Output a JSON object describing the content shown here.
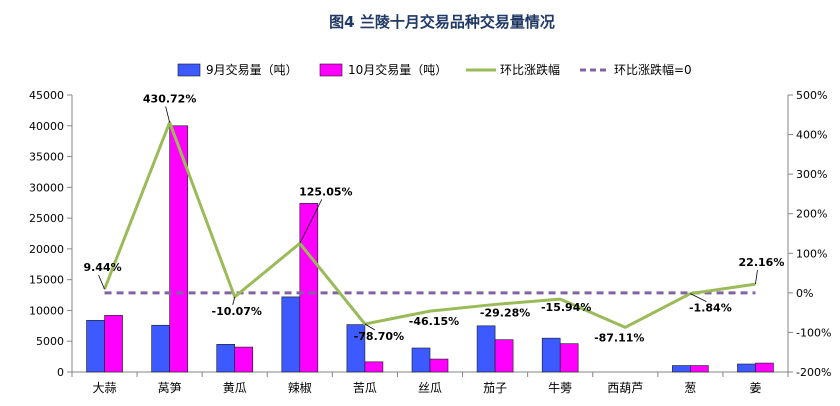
{
  "chart_data": {
    "type": "bar",
    "title": "图4  兰陵十月交易品种交易量情况",
    "categories": [
      "大蒜",
      "莴笋",
      "黄瓜",
      "辣椒",
      "苦瓜",
      "丝瓜",
      "茄子",
      "牛蒡",
      "西葫芦",
      "葱",
      "姜"
    ],
    "series": [
      {
        "name": "9月交易量（吨）",
        "axis": "left",
        "color": "#3c5aff",
        "values": [
          8400,
          7600,
          4500,
          12200,
          7700,
          3900,
          7500,
          5500,
          0,
          1050,
          1300
        ]
      },
      {
        "name": "10月交易量（吨）",
        "axis": "left",
        "color": "#ff00ff",
        "values": [
          9200,
          40000,
          4050,
          27400,
          1650,
          2100,
          5250,
          4600,
          0,
          1050,
          1450
        ]
      },
      {
        "name": "环比涨跌幅",
        "axis": "right",
        "type": "line",
        "color": "#9bbb59",
        "values": [
          9.44,
          430.72,
          -10.07,
          125.05,
          -78.7,
          -46.15,
          -29.28,
          -15.94,
          -87.11,
          -1.84,
          22.16
        ]
      },
      {
        "name": "环比涨跌幅=0",
        "axis": "right",
        "type": "line",
        "style": "dashed",
        "color": "#8064a2",
        "values": [
          0,
          0,
          0,
          0,
          0,
          0,
          0,
          0,
          0,
          0,
          0
        ]
      }
    ],
    "data_labels": [
      "9.44%",
      "430.72%",
      "-10.07%",
      "125.05%",
      "-78.70%",
      "-46.15%",
      "-29.28%",
      "-15.94%",
      "-87.11%",
      "-1.84%",
      "22.16%"
    ],
    "left_axis": {
      "min": 0,
      "max": 45000,
      "step": 5000,
      "ticks": [
        "0",
        "5000",
        "10000",
        "15000",
        "20000",
        "25000",
        "30000",
        "35000",
        "40000",
        "45000"
      ]
    },
    "right_axis": {
      "min": -200,
      "max": 500,
      "step": 100,
      "ticks": [
        "-200%",
        "-100%",
        "0%",
        "100%",
        "200%",
        "300%",
        "400%",
        "500%"
      ]
    },
    "legend_position": "top",
    "grid": false
  }
}
